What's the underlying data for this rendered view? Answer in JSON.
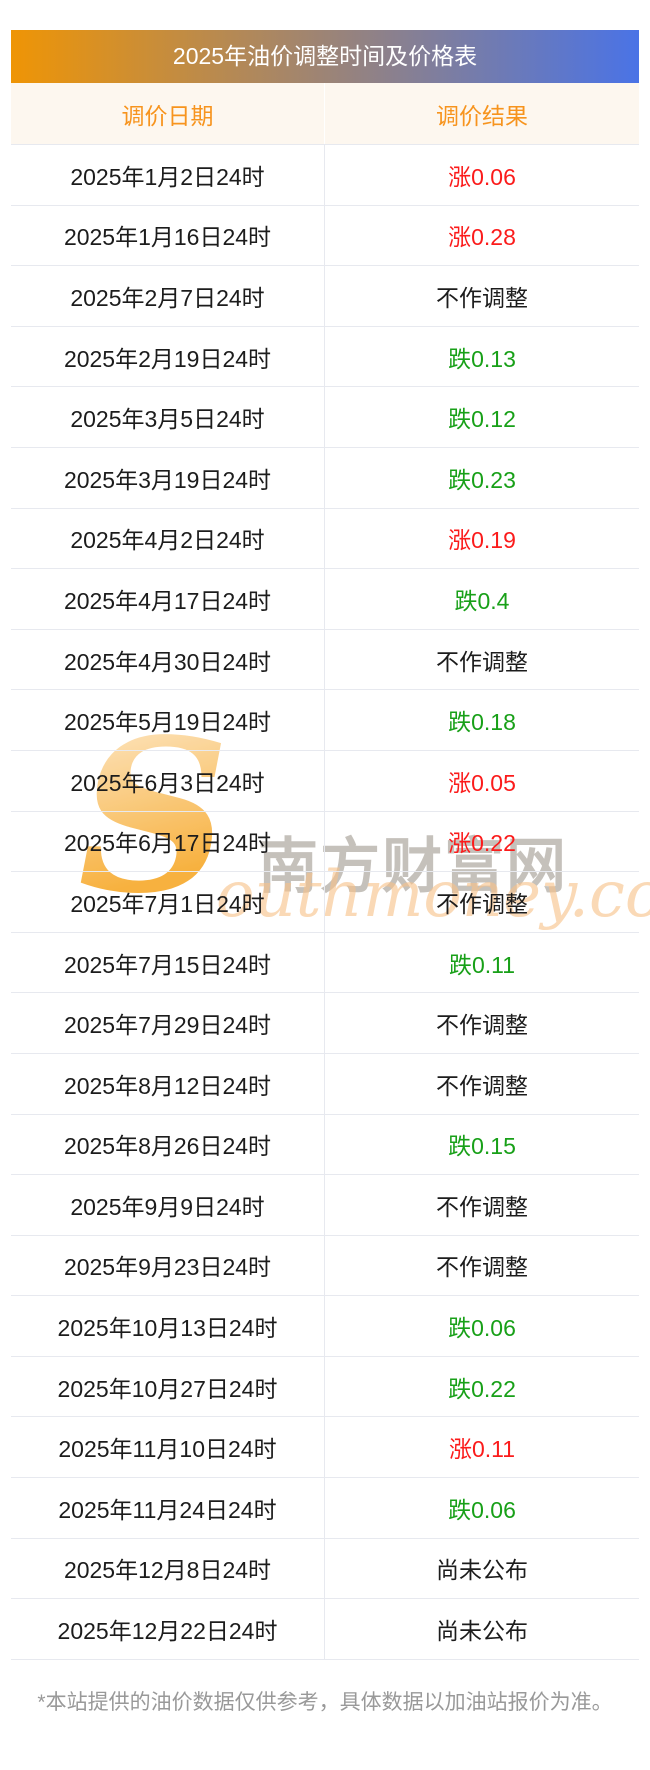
{
  "title": "2025年油价调整时间及价格表",
  "header": {
    "date_col": "调价日期",
    "result_col": "调价结果"
  },
  "colors": {
    "up": "#fb1b1b",
    "down": "#18a018",
    "none": "#1c1c1c",
    "accent": "#f7941e",
    "bar_gradient_left": "#ef9505",
    "bar_gradient_right": "#4a73e6",
    "header_bg": "#fdf7ef",
    "border": "#e7e9ef"
  },
  "table": {
    "rows": [
      {
        "date": "2025年1月2日24时",
        "result": "涨0.06",
        "trend": "up"
      },
      {
        "date": "2025年1月16日24时",
        "result": "涨0.28",
        "trend": "up"
      },
      {
        "date": "2025年2月7日24时",
        "result": "不作调整",
        "trend": "none"
      },
      {
        "date": "2025年2月19日24时",
        "result": "跌0.13",
        "trend": "down"
      },
      {
        "date": "2025年3月5日24时",
        "result": "跌0.12",
        "trend": "down"
      },
      {
        "date": "2025年3月19日24时",
        "result": "跌0.23",
        "trend": "down"
      },
      {
        "date": "2025年4月2日24时",
        "result": "涨0.19",
        "trend": "up"
      },
      {
        "date": "2025年4月17日24时",
        "result": "跌0.4",
        "trend": "down"
      },
      {
        "date": "2025年4月30日24时",
        "result": "不作调整",
        "trend": "none"
      },
      {
        "date": "2025年5月19日24时",
        "result": "跌0.18",
        "trend": "down"
      },
      {
        "date": "2025年6月3日24时",
        "result": "涨0.05",
        "trend": "up"
      },
      {
        "date": "2025年6月17日24时",
        "result": "涨0.22",
        "trend": "up"
      },
      {
        "date": "2025年7月1日24时",
        "result": "不作调整",
        "trend": "none"
      },
      {
        "date": "2025年7月15日24时",
        "result": "跌0.11",
        "trend": "down"
      },
      {
        "date": "2025年7月29日24时",
        "result": "不作调整",
        "trend": "none"
      },
      {
        "date": "2025年8月12日24时",
        "result": "不作调整",
        "trend": "none"
      },
      {
        "date": "2025年8月26日24时",
        "result": "跌0.15",
        "trend": "down"
      },
      {
        "date": "2025年9月9日24时",
        "result": "不作调整",
        "trend": "none"
      },
      {
        "date": "2025年9月23日24时",
        "result": "不作调整",
        "trend": "none"
      },
      {
        "date": "2025年10月13日24时",
        "result": "跌0.06",
        "trend": "down"
      },
      {
        "date": "2025年10月27日24时",
        "result": "跌0.22",
        "trend": "down"
      },
      {
        "date": "2025年11月10日24时",
        "result": "涨0.11",
        "trend": "up"
      },
      {
        "date": "2025年11月24日24时",
        "result": "跌0.06",
        "trend": "down"
      },
      {
        "date": "2025年12月8日24时",
        "result": "尚未公布",
        "trend": "none"
      },
      {
        "date": "2025年12月22日24时",
        "result": "尚未公布",
        "trend": "none"
      }
    ]
  },
  "watermark": {
    "s_glyph": "S",
    "cn_text": "南方财富网",
    "en_text": "outhmoney.com"
  },
  "footer": {
    "note": "*本站提供的油价数据仅供参考，具体数据以加油站报价为准。"
  }
}
